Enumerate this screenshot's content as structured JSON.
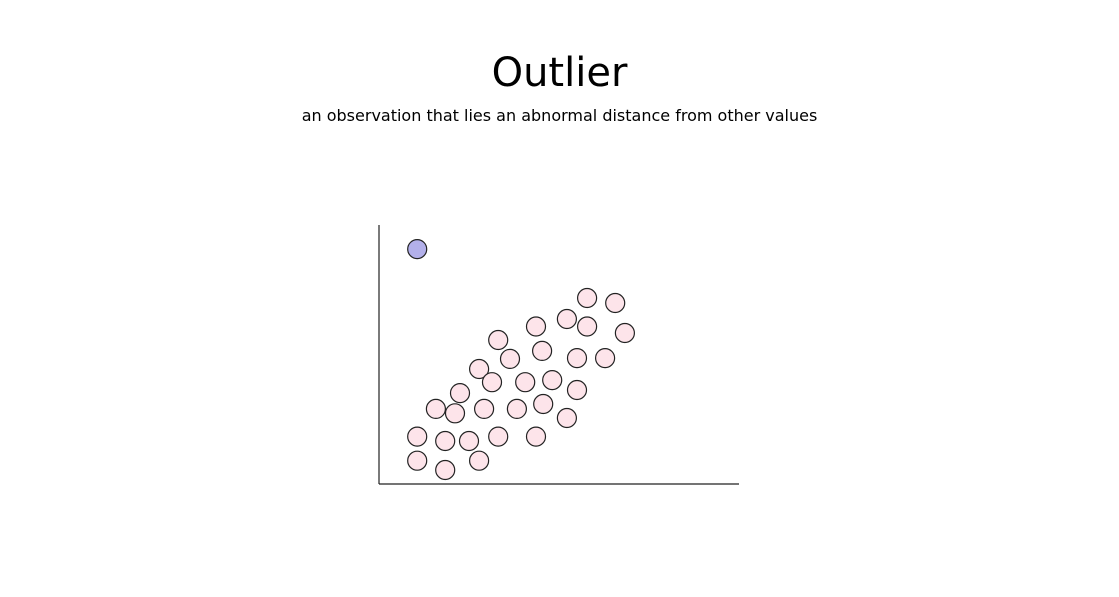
{
  "chart_data": {
    "type": "scatter",
    "title": "Outlier",
    "subtitle": "an observation that lies an abnormal distance from other values",
    "xlabel": "",
    "ylabel": "",
    "xlim": [
      0,
      100
    ],
    "ylim": [
      0,
      100
    ],
    "grid": false,
    "ticks": false,
    "colors": {
      "points": "#fde4ea",
      "outlier": "#b3b0ea",
      "stroke": "#222222",
      "axis": "#222222"
    },
    "points": [
      {
        "x": 10.6,
        "y": 9.0
      },
      {
        "x": 10.6,
        "y": 18.3
      },
      {
        "x": 18.4,
        "y": 5.4
      },
      {
        "x": 18.4,
        "y": 16.6
      },
      {
        "x": 27.8,
        "y": 9.0
      },
      {
        "x": 25.0,
        "y": 16.6
      },
      {
        "x": 33.1,
        "y": 18.3
      },
      {
        "x": 43.6,
        "y": 18.3
      },
      {
        "x": 15.8,
        "y": 29.0
      },
      {
        "x": 21.1,
        "y": 27.3
      },
      {
        "x": 22.5,
        "y": 35.1
      },
      {
        "x": 29.2,
        "y": 29.0
      },
      {
        "x": 38.3,
        "y": 29.0
      },
      {
        "x": 45.6,
        "y": 30.9
      },
      {
        "x": 52.2,
        "y": 25.5
      },
      {
        "x": 27.8,
        "y": 44.4
      },
      {
        "x": 31.4,
        "y": 39.3
      },
      {
        "x": 36.4,
        "y": 48.3
      },
      {
        "x": 40.6,
        "y": 39.3
      },
      {
        "x": 48.1,
        "y": 40.1
      },
      {
        "x": 55.0,
        "y": 36.3
      },
      {
        "x": 33.1,
        "y": 55.6
      },
      {
        "x": 45.3,
        "y": 51.4
      },
      {
        "x": 43.6,
        "y": 60.8
      },
      {
        "x": 55.0,
        "y": 48.6
      },
      {
        "x": 52.2,
        "y": 63.7
      },
      {
        "x": 62.8,
        "y": 48.6
      },
      {
        "x": 57.8,
        "y": 60.8
      },
      {
        "x": 57.8,
        "y": 71.8
      },
      {
        "x": 65.6,
        "y": 69.9
      },
      {
        "x": 68.3,
        "y": 58.3
      }
    ],
    "outliers": [
      {
        "x": 10.6,
        "y": 90.7
      }
    ]
  }
}
